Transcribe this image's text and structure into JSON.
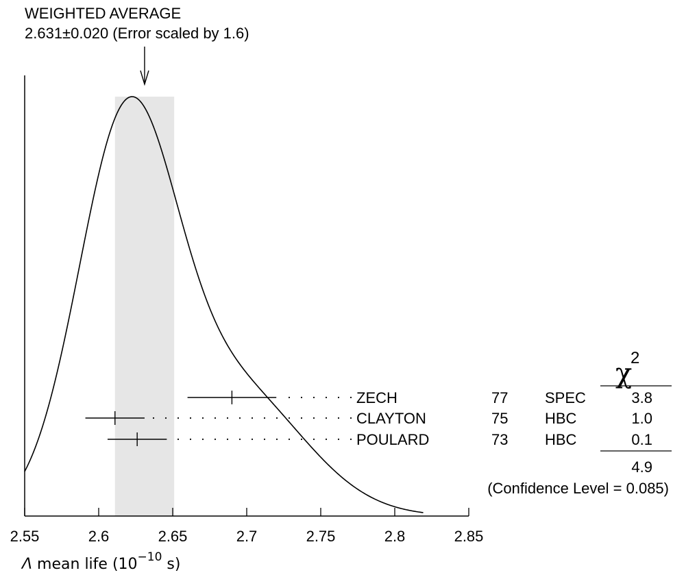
{
  "chart_data": {
    "type": "ideogram",
    "title": "WEIGHTED AVERAGE",
    "subtitle": "2.631±0.020 (Error scaled by 1.6)",
    "weighted_average": {
      "value": 2.631,
      "error": 0.02,
      "scale_factor": 1.6
    },
    "xlabel_prefix": "Λ",
    "xlabel_text": " mean life (10",
    "xlabel_exp": "−10",
    "xlabel_suffix": " s)",
    "xlim": [
      2.55,
      2.85
    ],
    "xticks": [
      2.55,
      2.6,
      2.65,
      2.7,
      2.75,
      2.8,
      2.85
    ],
    "xtick_labels": [
      "2.55",
      "2.6",
      "2.65",
      "2.7",
      "2.75",
      "2.8",
      "2.85"
    ],
    "grid": false,
    "chi2_header": "χ",
    "chi2_header_exp": "2",
    "measurements": [
      {
        "author": "ZECH",
        "year": "77",
        "technique": "SPEC",
        "value": 2.69,
        "error": 0.03,
        "chi2": "3.8"
      },
      {
        "author": "CLAYTON",
        "year": "75",
        "technique": "HBC",
        "value": 2.611,
        "error": 0.02,
        "chi2": "1.0"
      },
      {
        "author": "POULARD",
        "year": "73",
        "technique": "HBC",
        "value": 2.626,
        "error": 0.02,
        "chi2": "0.1"
      }
    ],
    "chi2_total": "4.9",
    "confidence_level": "(Confidence Level = 0.085)",
    "colors": {
      "band": "#e6e6e6",
      "line": "#000000"
    }
  }
}
